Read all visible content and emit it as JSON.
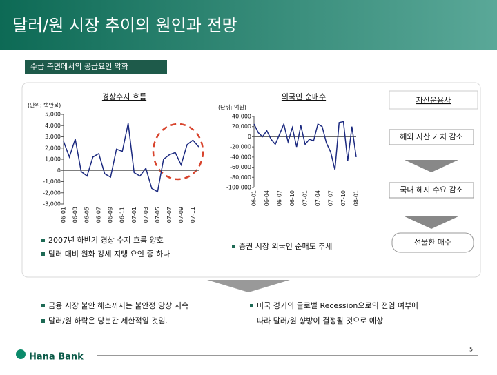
{
  "header": {
    "title": "달러/원 시장 추이의 원인과 전망",
    "subtitle": "수급 측면에서의 공급요인 악화"
  },
  "chart_data": [
    {
      "type": "line",
      "title": "경상수지 흐름",
      "unit": "(단위: 백만불)",
      "color": "#1c2a80",
      "categories": [
        "06-01",
        null,
        "06-03",
        null,
        "06-05",
        null,
        "06-07",
        null,
        "06-09",
        null,
        "06-11",
        null,
        "07-01",
        null,
        "07-03",
        null,
        "07-05",
        null,
        "07-07",
        null,
        "07-09",
        null,
        "07-11",
        null
      ],
      "values": [
        2600,
        1200,
        2800,
        -100,
        -500,
        1200,
        1500,
        -300,
        -600,
        1900,
        1700,
        4200,
        -200,
        -500,
        200,
        -1600,
        -1900,
        1000,
        1400,
        1600,
        500,
        2300,
        2700,
        2100
      ],
      "ylim": [
        -3000,
        5000
      ],
      "yticks": [
        {
          "value": 5000,
          "label": "5,000"
        },
        {
          "value": 4000,
          "label": "4,000"
        },
        {
          "value": 3000,
          "label": "3,000"
        },
        {
          "value": 2000,
          "label": "2,000"
        },
        {
          "value": 1000,
          "label": "1,000"
        },
        0,
        {
          "value": -1000,
          "label": "-1,000"
        },
        {
          "value": -2000,
          "label": "-2,000"
        },
        {
          "value": -3000,
          "label": "-3,000"
        }
      ]
    },
    {
      "type": "line",
      "title": "외국인 순매수",
      "unit": "(단위: 억원)",
      "color": "#1c2a80",
      "categories": [
        "06-01",
        null,
        null,
        "06-04",
        null,
        null,
        "06-07",
        null,
        null,
        "06-10",
        null,
        null,
        "07-01",
        null,
        null,
        "07-04",
        null,
        null,
        "07-07",
        null,
        null,
        "07-10",
        null,
        null,
        "08-01"
      ],
      "values": [
        25000,
        8000,
        0,
        12000,
        -5000,
        -15000,
        5000,
        25000,
        -10000,
        18000,
        -20000,
        22000,
        -15000,
        -5000,
        -8000,
        25000,
        20000,
        -12000,
        -30000,
        -65000,
        28000,
        30000,
        -48000,
        20000,
        -40000
      ],
      "ylim": [
        -100000,
        40000
      ],
      "yticks": [
        {
          "value": 40000,
          "label": "40,000"
        },
        {
          "value": 20000,
          "label": "20,000"
        },
        0,
        {
          "value": -20000,
          "label": "-20,000"
        },
        {
          "value": -40000,
          "label": "-40,000"
        },
        {
          "value": -60000,
          "label": "-60,000"
        },
        {
          "value": -80000,
          "label": "-80,000"
        },
        {
          "value": -100000,
          "label": "-100,000"
        }
      ]
    }
  ],
  "flow": {
    "title": "자산운용사",
    "steps": [
      "해외 자산 가치 감소",
      "국내 헤지 수요 감소",
      "선물환 매수"
    ]
  },
  "notes": {
    "left": [
      "2007년 하반기 경상 수지 흐름 양호",
      "달러 대비 원화 강세 지탱 요인 중 하나"
    ],
    "right": [
      "증권 시장 외국인 순매도 추세"
    ]
  },
  "conclusion": {
    "left": [
      "금융 시장 불안 해소까지는 불안정 양상 지속",
      "달러/원 하락은 당분간 제한적일 것임."
    ],
    "right": [
      "미국 경기의 글로벌 Recession으로의 전염 여부에",
      "따라 달러/원 향방이 결정될 것으로 예상"
    ]
  },
  "footer": {
    "logo": "Hana Bank",
    "page": "5"
  }
}
